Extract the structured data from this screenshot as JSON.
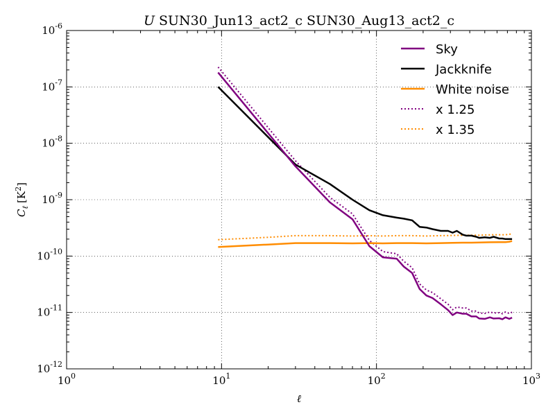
{
  "chart_data": {
    "type": "line",
    "title_italic": "U",
    "title": "SUN30_Jun13_act2_c SUN30_Aug13_act2_c",
    "xlabel": "ℓ",
    "ylabel": "C",
    "ylabel_sub": "ℓ",
    "ylabel_unit": "[K",
    "ylabel_unit_sup": "2",
    "ylabel_unit_end": "]",
    "x_scale": "log",
    "y_scale": "log",
    "xlim": [
      1,
      1000
    ],
    "ylim": [
      1e-12,
      1e-06
    ],
    "grid": true,
    "legend_position": "top-right",
    "x_ticks": [
      {
        "base": "10",
        "exp": "0",
        "value": 1
      },
      {
        "base": "10",
        "exp": "1",
        "value": 10
      },
      {
        "base": "10",
        "exp": "2",
        "value": 100
      },
      {
        "base": "10",
        "exp": "3",
        "value": 1000
      }
    ],
    "y_ticks": [
      {
        "base": "10",
        "exp": "-12",
        "value": 1e-12
      },
      {
        "base": "10",
        "exp": "-11",
        "value": 1e-11
      },
      {
        "base": "10",
        "exp": "-10",
        "value": 1e-10
      },
      {
        "base": "10",
        "exp": "-9",
        "value": 1e-09
      },
      {
        "base": "10",
        "exp": "-8",
        "value": 1e-08
      },
      {
        "base": "10",
        "exp": "-7",
        "value": 1e-07
      },
      {
        "base": "10",
        "exp": "-6",
        "value": 1e-06
      }
    ],
    "series": [
      {
        "name": "Sky",
        "color": "#800080",
        "style": "solid",
        "points": [
          [
            9.5,
            1.8e-07
          ],
          [
            30,
            3.9e-09
          ],
          [
            50,
            9e-10
          ],
          [
            70,
            4.5e-10
          ],
          [
            90,
            1.5e-10
          ],
          [
            110,
            9.5e-11
          ],
          [
            135,
            9e-11
          ],
          [
            150,
            6.5e-11
          ],
          [
            170,
            5e-11
          ],
          [
            190,
            2.6e-11
          ],
          [
            210,
            2e-11
          ],
          [
            230,
            1.8e-11
          ],
          [
            260,
            1.4e-11
          ],
          [
            290,
            1.1e-11
          ],
          [
            310,
            9e-12
          ],
          [
            330,
            1e-11
          ],
          [
            360,
            9.5e-12
          ],
          [
            380,
            9.5e-12
          ],
          [
            410,
            8.5e-12
          ],
          [
            440,
            8.5e-12
          ],
          [
            460,
            7.8e-12
          ],
          [
            500,
            7.7e-12
          ],
          [
            540,
            8.2e-12
          ],
          [
            570,
            7.8e-12
          ],
          [
            620,
            7.9e-12
          ],
          [
            650,
            7.6e-12
          ],
          [
            680,
            8.2e-12
          ],
          [
            720,
            7.7e-12
          ],
          [
            750,
            8.1e-12
          ]
        ]
      },
      {
        "name": "Jackknife",
        "color": "#000000",
        "style": "solid",
        "points": [
          [
            9.5,
            1e-07
          ],
          [
            30,
            4.2e-09
          ],
          [
            50,
            1.9e-09
          ],
          [
            70,
            1e-09
          ],
          [
            90,
            6.5e-10
          ],
          [
            110,
            5.3e-10
          ],
          [
            135,
            4.8e-10
          ],
          [
            150,
            4.6e-10
          ],
          [
            170,
            4.3e-10
          ],
          [
            190,
            3.3e-10
          ],
          [
            210,
            3.2e-10
          ],
          [
            230,
            3e-10
          ],
          [
            260,
            2.8e-10
          ],
          [
            290,
            2.8e-10
          ],
          [
            310,
            2.6e-10
          ],
          [
            330,
            2.8e-10
          ],
          [
            360,
            2.4e-10
          ],
          [
            380,
            2.3e-10
          ],
          [
            410,
            2.3e-10
          ],
          [
            440,
            2.2e-10
          ],
          [
            460,
            2.1e-10
          ],
          [
            500,
            2.15e-10
          ],
          [
            540,
            2.1e-10
          ],
          [
            570,
            2.2e-10
          ],
          [
            620,
            2.05e-10
          ],
          [
            650,
            2.05e-10
          ],
          [
            680,
            2e-10
          ],
          [
            720,
            2e-10
          ],
          [
            750,
            2e-10
          ]
        ]
      },
      {
        "name": "White noise",
        "color": "#ff8c00",
        "style": "solid",
        "points": [
          [
            9.5,
            1.45e-10
          ],
          [
            20,
            1.6e-10
          ],
          [
            30,
            1.7e-10
          ],
          [
            50,
            1.7e-10
          ],
          [
            70,
            1.68e-10
          ],
          [
            90,
            1.7e-10
          ],
          [
            110,
            1.68e-10
          ],
          [
            135,
            1.7e-10
          ],
          [
            170,
            1.7e-10
          ],
          [
            210,
            1.68e-10
          ],
          [
            260,
            1.7e-10
          ],
          [
            310,
            1.72e-10
          ],
          [
            360,
            1.73e-10
          ],
          [
            410,
            1.73e-10
          ],
          [
            460,
            1.74e-10
          ],
          [
            540,
            1.76e-10
          ],
          [
            620,
            1.77e-10
          ],
          [
            680,
            1.77e-10
          ],
          [
            720,
            1.8e-10
          ],
          [
            750,
            1.85e-10
          ]
        ]
      },
      {
        "name": "x 1.25",
        "color": "#800080",
        "style": "dotted",
        "points": [
          [
            9.5,
            2.25e-07
          ],
          [
            30,
            4.9e-09
          ],
          [
            50,
            1.1e-09
          ],
          [
            70,
            5.6e-10
          ],
          [
            90,
            1.9e-10
          ],
          [
            110,
            1.2e-10
          ],
          [
            135,
            1.1e-10
          ],
          [
            150,
            8.1e-11
          ],
          [
            170,
            6.2e-11
          ],
          [
            190,
            3.2e-11
          ],
          [
            210,
            2.5e-11
          ],
          [
            230,
            2.25e-11
          ],
          [
            260,
            1.75e-11
          ],
          [
            290,
            1.4e-11
          ],
          [
            310,
            1.12e-11
          ],
          [
            330,
            1.25e-11
          ],
          [
            360,
            1.2e-11
          ],
          [
            380,
            1.2e-11
          ],
          [
            410,
            1.06e-11
          ],
          [
            440,
            1.06e-11
          ],
          [
            460,
            9.8e-12
          ],
          [
            500,
            9.6e-12
          ],
          [
            540,
            1.02e-11
          ],
          [
            570,
            9.8e-12
          ],
          [
            620,
            9.9e-12
          ],
          [
            650,
            9.5e-12
          ],
          [
            680,
            1.02e-11
          ],
          [
            720,
            9.6e-12
          ],
          [
            750,
            1.01e-11
          ]
        ]
      },
      {
        "name": "x 1.35",
        "color": "#ff8c00",
        "style": "dotted",
        "points": [
          [
            9.5,
            1.95e-10
          ],
          [
            20,
            2.15e-10
          ],
          [
            30,
            2.3e-10
          ],
          [
            50,
            2.3e-10
          ],
          [
            70,
            2.27e-10
          ],
          [
            90,
            2.3e-10
          ],
          [
            110,
            2.27e-10
          ],
          [
            135,
            2.3e-10
          ],
          [
            170,
            2.3e-10
          ],
          [
            210,
            2.27e-10
          ],
          [
            260,
            2.3e-10
          ],
          [
            310,
            2.32e-10
          ],
          [
            360,
            2.34e-10
          ],
          [
            410,
            2.34e-10
          ],
          [
            460,
            2.35e-10
          ],
          [
            540,
            2.38e-10
          ],
          [
            620,
            2.39e-10
          ],
          [
            680,
            2.39e-10
          ],
          [
            720,
            2.43e-10
          ],
          [
            750,
            2.5e-10
          ]
        ]
      }
    ]
  }
}
